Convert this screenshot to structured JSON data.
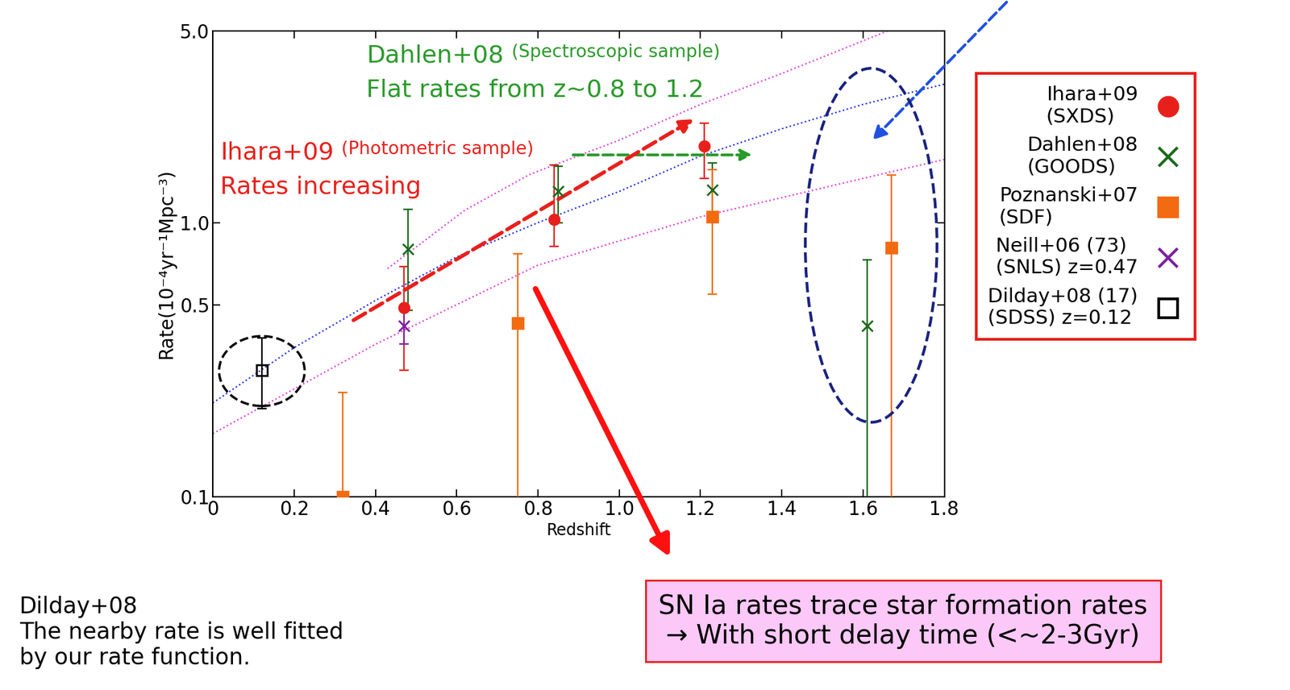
{
  "chart_data": {
    "type": "scatter",
    "x_label": "Redshift",
    "y_label": "Rate(10⁻⁴yr⁻¹Mpc⁻³)",
    "log": "y",
    "xlim": [
      0,
      1.8
    ],
    "ylim": [
      0.1,
      5.0
    ],
    "xticks": [
      0,
      0.2,
      0.4,
      0.6,
      0.8,
      1.0,
      1.2,
      1.4,
      1.6,
      1.8
    ],
    "yticks": [
      0.1,
      0.5,
      {
        "value": 1,
        "label": "1.0"
      },
      {
        "value": 5,
        "label": "5.0"
      }
    ],
    "legend": "upper left",
    "series": [
      {
        "name": "Ihara+09\n(SXDS)",
        "color": "#e8201c",
        "marker": "circle",
        "x": [
          0.47,
          0.84,
          1.21
        ],
        "values": [
          0.49,
          1.03,
          1.9
        ],
        "y_low": [
          0.29,
          0.82,
          1.45
        ],
        "y_high": [
          0.69,
          1.62,
          2.3
        ]
      },
      {
        "name": "Dahlen+08\n(GOODS)",
        "color": "#1a6a1a",
        "marker": "x",
        "x": [
          0.48,
          0.85,
          1.23,
          1.61
        ],
        "values": [
          0.8,
          1.3,
          1.32,
          0.42
        ],
        "y_low": [
          0.48,
          1.0,
          1.02,
          0.05
        ],
        "y_high": [
          1.12,
          1.61,
          1.65,
          0.73
        ]
      },
      {
        "name": "Poznanski+07\n(SDF)",
        "color": "#f26b10",
        "marker": "square",
        "x": [
          0.32,
          0.75,
          1.23,
          1.67
        ],
        "values": [
          0.1,
          0.43,
          1.05,
          0.81
        ],
        "y_low": [
          0.05,
          0.05,
          0.55,
          0.05
        ],
        "y_high": [
          0.24,
          0.77,
          1.56,
          1.49
        ]
      },
      {
        "name": "Neill+06 (73)\n(SNLS) z=0.47",
        "color": "#7b1fa2",
        "marker": "x",
        "x": [
          0.47
        ],
        "values": [
          0.42
        ],
        "y_low": [
          0.36
        ],
        "y_high": [
          0.48
        ]
      },
      {
        "name": "Dilday+08 (17)\n(SDSS) z=0.12",
        "color": "#000000",
        "marker": "open_square",
        "x": [
          0.12
        ],
        "values": [
          0.29
        ],
        "y_low": [
          0.21
        ],
        "y_high": [
          0.38
        ]
      }
    ],
    "lines": [
      {
        "color": "#2030e0",
        "line_style": "dotted",
        "x": [
          0,
          0.2,
          0.4,
          0.6,
          0.8,
          1.0,
          1.2,
          1.4,
          1.6,
          1.8
        ],
        "values": [
          0.22,
          0.35,
          0.52,
          0.75,
          1.0,
          1.3,
          1.75,
          2.2,
          2.7,
          3.2
        ]
      },
      {
        "color": "#e040e0",
        "line_style": "dotted",
        "x": [
          0,
          0.4,
          0.8,
          1.2,
          1.6,
          1.8
        ],
        "values": [
          0.17,
          0.36,
          0.7,
          1.05,
          1.45,
          1.7
        ]
      },
      {
        "color": "#e040e0",
        "line_style": "dotted",
        "x": [
          0.43,
          0.62,
          0.78,
          1.0,
          1.2,
          1.4,
          1.66
        ],
        "values": [
          0.68,
          1.11,
          1.5,
          2.0,
          2.7,
          3.5,
          5.0
        ]
      }
    ],
    "annotations": [
      {
        "text": "Dahlen+08",
        "detail": "(Spectroscopic sample)",
        "line2": "Flat rates from z~0.8 to 1.2",
        "color": "#2a9a2a"
      },
      {
        "text": "Ihara+09",
        "detail": "(Photometric sample)",
        "line2": "Rates increasing",
        "color": "#e8201c"
      },
      {
        "text": "Dilday+08\nThe nearby rate is well fitted\nby our rate function.",
        "color": "#000000"
      },
      {
        "text": "SN Ia rates trace star formation rates\n→ With short delay time (<~2-3Gyr)",
        "color": "#000000"
      }
    ]
  }
}
